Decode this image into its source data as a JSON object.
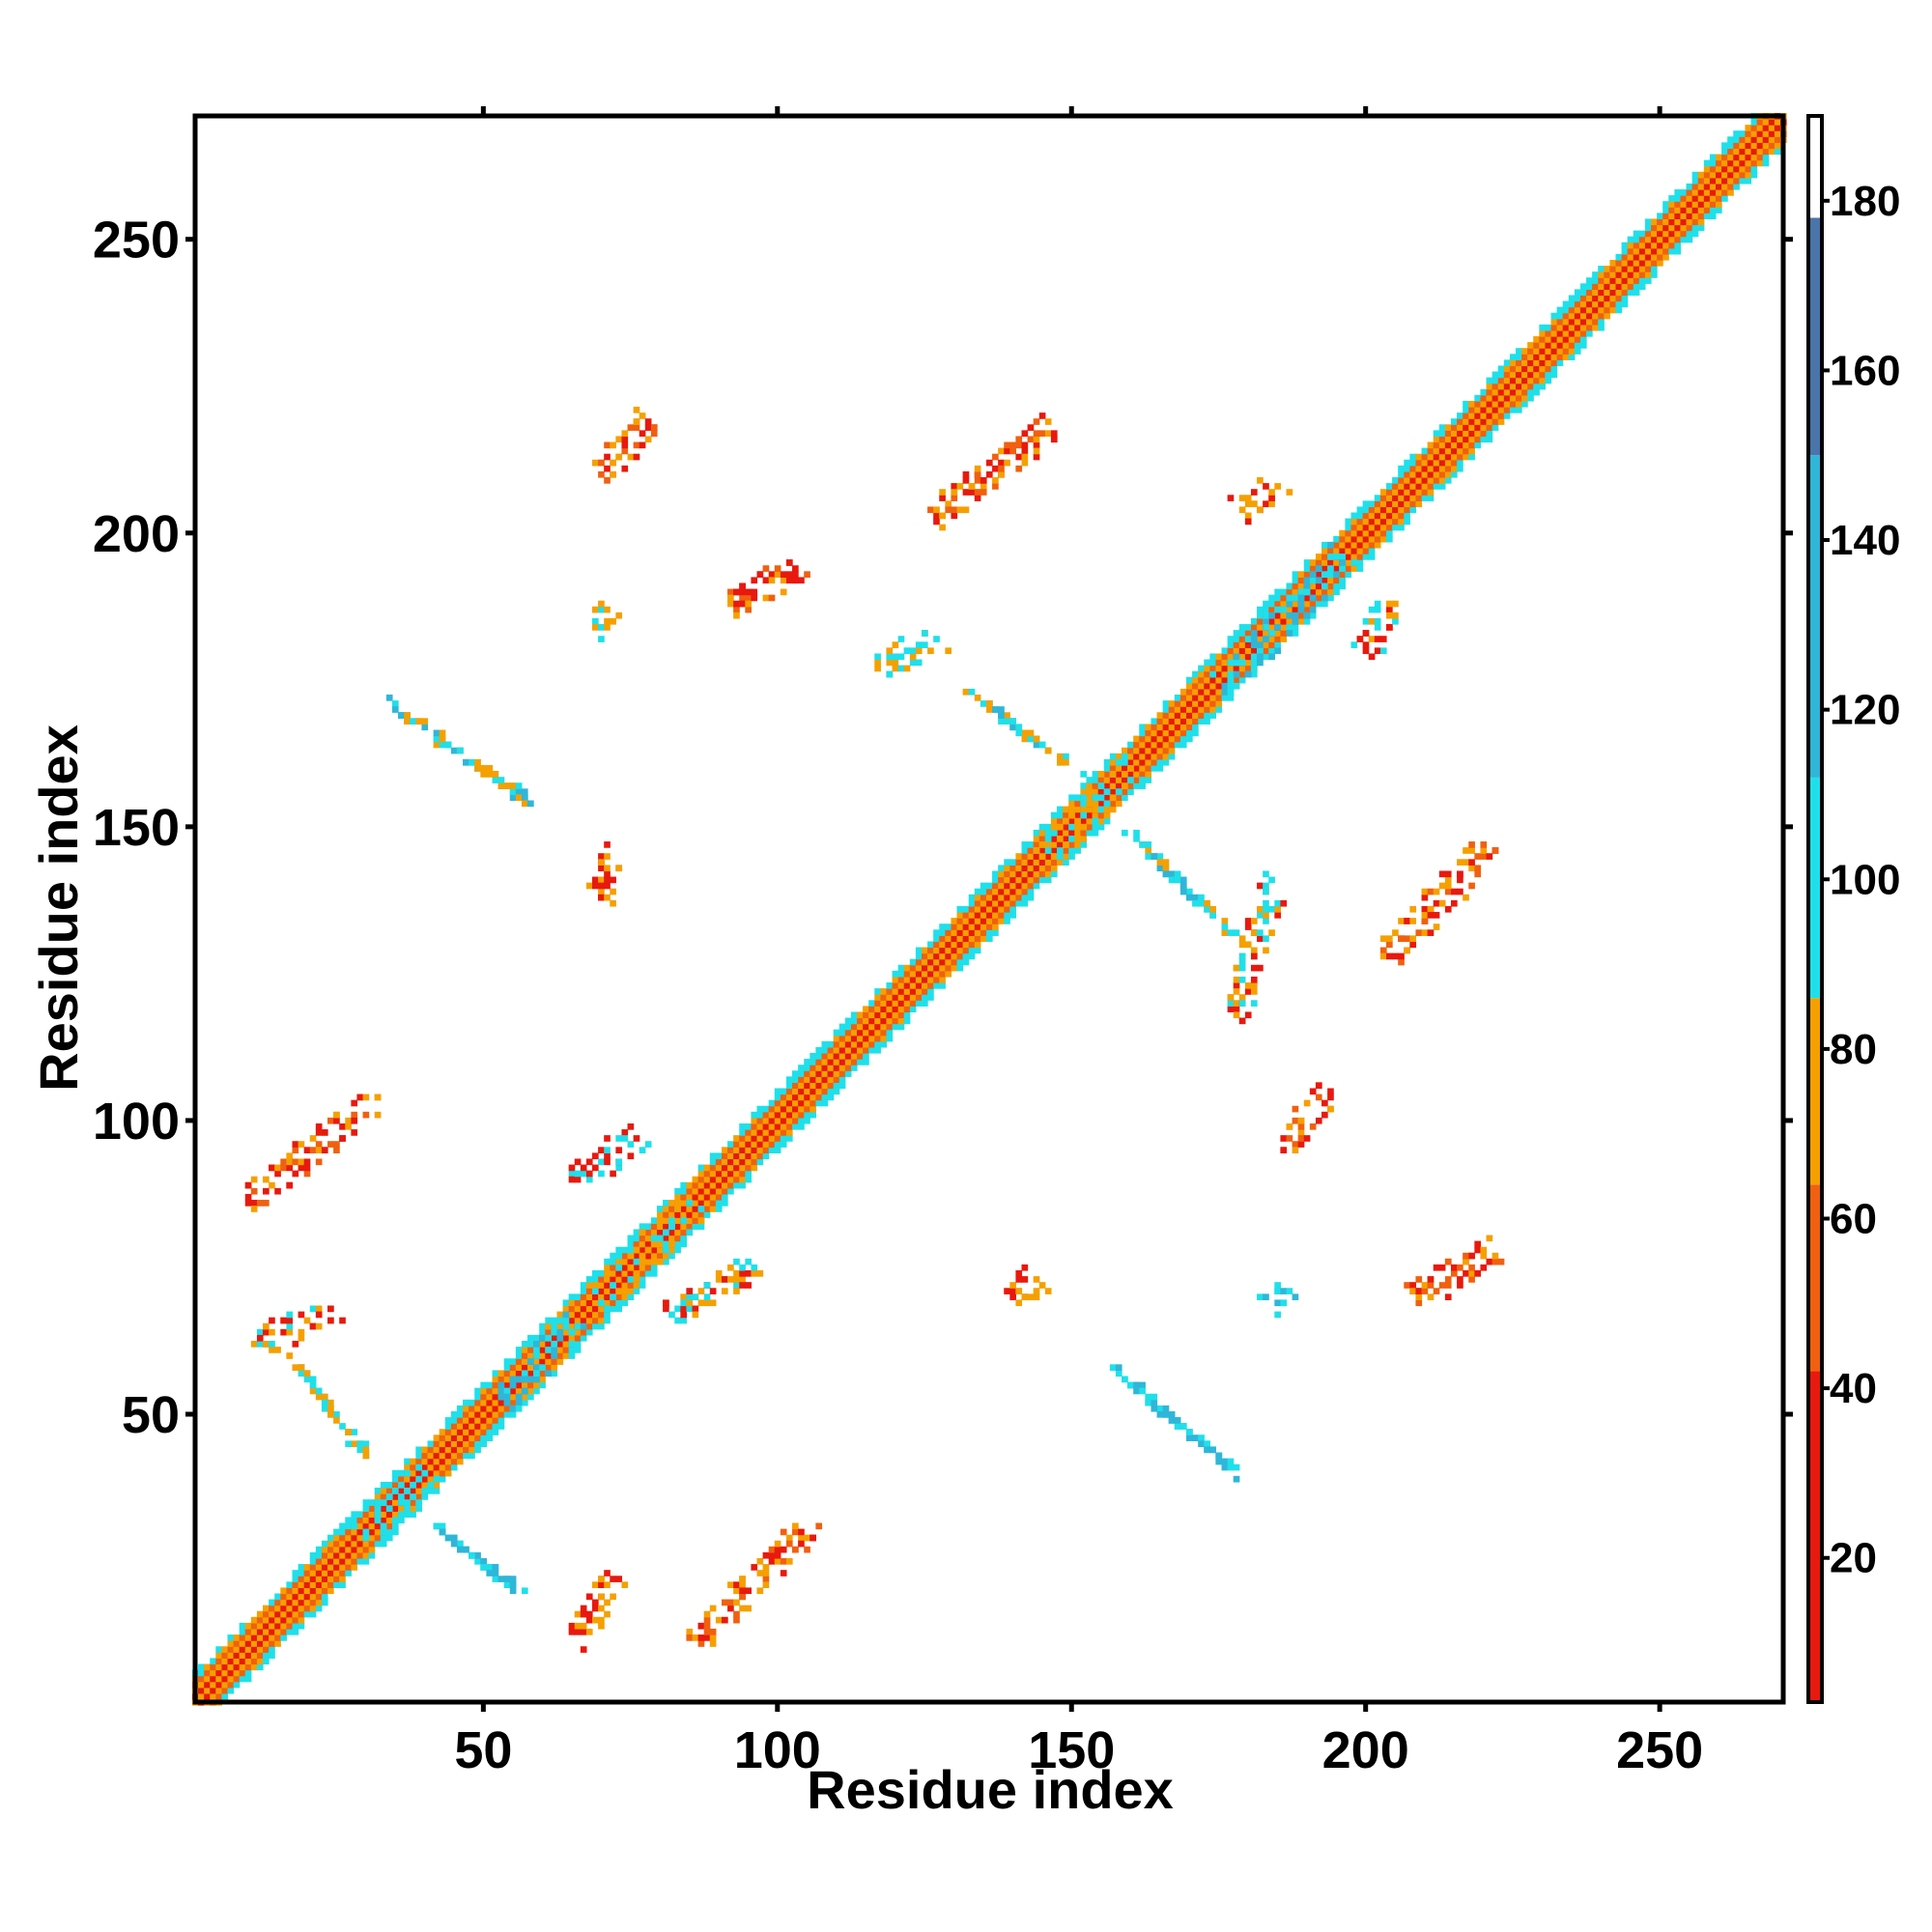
{
  "chart_data": {
    "type": "heatmap",
    "xlabel": "Residue index",
    "ylabel": "Residue index",
    "xlim": [
      1,
      271
    ],
    "ylim": [
      1,
      271
    ],
    "x_ticks": [
      50,
      100,
      150,
      200,
      250
    ],
    "y_ticks": [
      50,
      100,
      150,
      200,
      250
    ],
    "colorbar": {
      "ticks": [
        20,
        40,
        60,
        80,
        100,
        120,
        140,
        160,
        180
      ],
      "range": [
        3,
        190
      ],
      "bands": [
        {
          "from": 3,
          "to": 42,
          "color": "#e8190e"
        },
        {
          "from": 42,
          "to": 64,
          "color": "#f06010"
        },
        {
          "from": 64,
          "to": 86,
          "color": "#f5a000"
        },
        {
          "from": 86,
          "to": 112,
          "color": "#1fe0ea"
        },
        {
          "from": 112,
          "to": 150,
          "color": "#2fb6d8"
        },
        {
          "from": 150,
          "to": 178,
          "color": "#4a74aa"
        },
        {
          "from": 178,
          "to": 190,
          "color": "#ffffff"
        }
      ]
    },
    "legend": "right colorbar",
    "grid": false,
    "diagonal": {
      "from": 1,
      "to": 271
    },
    "contact_patches": [
      {
        "x": [
          35,
          57
        ],
        "y": [
          170,
          155
        ],
        "colors": [
          "#1fe0ea",
          "#2fb6d8",
          "#f5a000"
        ]
      },
      {
        "x": [
          19,
          30
        ],
        "y": [
          58,
          43
        ],
        "colors": [
          "#1fe0ea",
          "#f5a000"
        ]
      },
      {
        "x": [
          42,
          56
        ],
        "y": [
          31,
          20
        ],
        "colors": [
          "#1fe0ea",
          "#2fb6d8"
        ]
      },
      {
        "x": [
          10,
          32
        ],
        "y": [
          86,
          104
        ],
        "colors": [
          "#e8190e",
          "#f06010",
          "#f5a000"
        ]
      },
      {
        "x": [
          86,
          106
        ],
        "y": [
          11,
          32
        ],
        "colors": [
          "#e8190e",
          "#f06010",
          "#f5a000"
        ]
      },
      {
        "x": [
          70,
          78
        ],
        "y": [
          210,
          219
        ],
        "colors": [
          "#e8190e",
          "#f06010",
          "#f5a000"
        ]
      },
      {
        "x": [
          127,
          146
        ],
        "y": [
          203,
          218
        ],
        "colors": [
          "#e8190e",
          "#f06010",
          "#f5a000"
        ]
      },
      {
        "x": [
          92,
          104
        ],
        "y": [
          188,
          194
        ],
        "colors": [
          "#e8190e",
          "#f06010",
          "#f5a000"
        ]
      },
      {
        "x": [
          204,
          221
        ],
        "y": [
          128,
          147
        ],
        "colors": [
          "#e8190e",
          "#f06010",
          "#f5a000"
        ]
      },
      {
        "x": [
          208,
          222
        ],
        "y": [
          70,
          78
        ],
        "colors": [
          "#e8190e",
          "#f06010",
          "#f5a000"
        ]
      },
      {
        "x": [
          186,
          194
        ],
        "y": [
          95,
          105
        ],
        "colors": [
          "#e8190e",
          "#f06010",
          "#f5a000"
        ]
      },
      {
        "x": [
          134,
          150
        ],
        "y": [
          172,
          160
        ],
        "colors": [
          "#1fe0ea",
          "#2fb6d8",
          "#f5a000"
        ]
      },
      {
        "x": [
          161,
          176
        ],
        "y": [
          148,
          133
        ],
        "colors": [
          "#1fe0ea",
          "#2fb6d8",
          "#f5a000"
        ]
      },
      {
        "x": [
          158,
          177
        ],
        "y": [
          57,
          41
        ],
        "colors": [
          "#1fe0ea",
          "#2fb6d8"
        ]
      },
      {
        "x": [
          69,
          71
        ],
        "y": [
          184,
          187
        ],
        "colors": [
          "#1fe0ea",
          "#f5a000"
        ]
      },
      {
        "x": [
          70,
          72
        ],
        "y": [
          138,
          145
        ],
        "colors": [
          "#e8190e",
          "#f5a000"
        ]
      },
      {
        "x": [
          140,
          144
        ],
        "y": [
          70,
          73
        ],
        "colors": [
          "#e8190e",
          "#f5a000"
        ]
      },
      {
        "x": [
          184,
          187
        ],
        "y": [
          69,
          71
        ],
        "colors": [
          "#1fe0ea",
          "#2fb6d8"
        ]
      },
      {
        "x": [
          179,
          185
        ],
        "y": [
          204,
          208
        ],
        "colors": [
          "#e8190e",
          "#f5a000"
        ]
      },
      {
        "x": [
          200,
          204
        ],
        "y": [
          180,
          188
        ],
        "colors": [
          "#e8190e",
          "#f5a000",
          "#1fe0ea"
        ]
      },
      {
        "x": [
          118,
          127
        ],
        "y": [
          177,
          182
        ],
        "colors": [
          "#1fe0ea",
          "#f5a000"
        ]
      },
      {
        "x": [
          178,
          184
        ],
        "y": [
          118,
          140
        ],
        "colors": [
          "#e8190e",
          "#1fe0ea",
          "#f5a000"
        ]
      },
      {
        "x": [
          66,
          72
        ],
        "y": [
          12,
          22
        ],
        "colors": [
          "#e8190e",
          "#f5a000"
        ]
      },
      {
        "x": [
          12,
          24
        ],
        "y": [
          62,
          68
        ],
        "colors": [
          "#e8190e",
          "#1fe0ea",
          "#f5a000"
        ]
      },
      {
        "x": [
          66,
          76
        ],
        "y": [
          90,
          97
        ],
        "colors": [
          "#e8190e",
          "#1fe0ea"
        ]
      },
      {
        "x": [
          82,
          96
        ],
        "y": [
          67,
          75
        ],
        "colors": [
          "#1fe0ea",
          "#f5a000",
          "#e8190e"
        ]
      },
      {
        "x": [
          54,
          66
        ],
        "y": [
          52,
          67
        ],
        "colors": [
          "#1fe0ea",
          "#2fb6d8"
        ]
      },
      {
        "x": [
          70,
          86
        ],
        "y": [
          70,
          86
        ],
        "colors": [
          "#1fe0ea",
          "#f5a000"
        ]
      },
      {
        "x": [
          176,
          196
        ],
        "y": [
          174,
          196
        ],
        "colors": [
          "#1fe0ea",
          "#2fb6d8"
        ]
      },
      {
        "x": [
          30,
          40
        ],
        "y": [
          30,
          40
        ],
        "colors": [
          "#1fe0ea"
        ]
      },
      {
        "x": [
          145,
          160
        ],
        "y": [
          145,
          160
        ],
        "colors": [
          "#1fe0ea",
          "#f5a000"
        ]
      }
    ]
  }
}
